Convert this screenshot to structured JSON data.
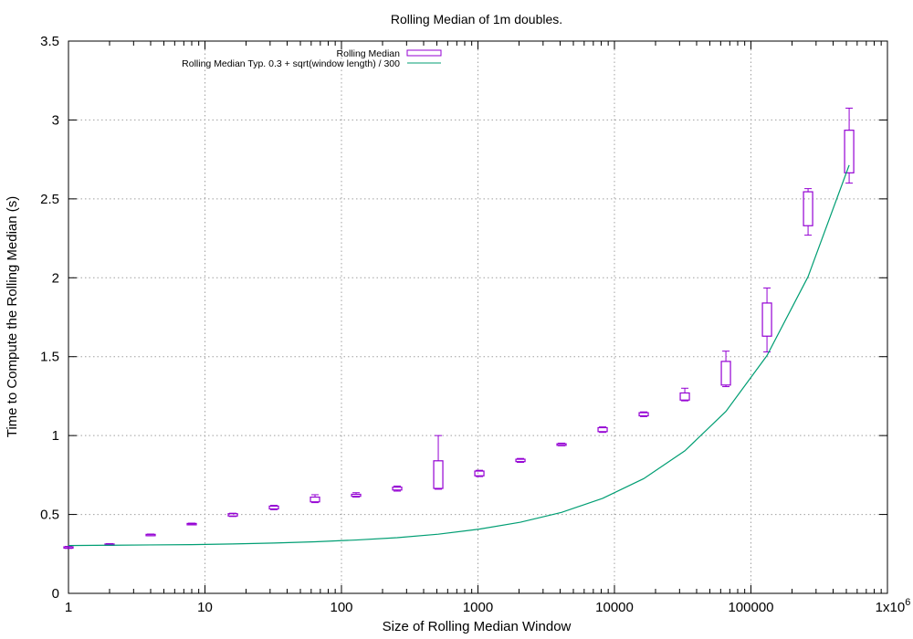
{
  "chart_data": {
    "type": "box",
    "title": "Rolling Median of 1m doubles.",
    "xlabel": "Size of Rolling Median Window",
    "ylabel": "Time to Compute the Rolling Median (s)",
    "x_scale": "log",
    "xlim": [
      1,
      1000000
    ],
    "ylim": [
      0,
      3.5
    ],
    "grid": true,
    "legend_position": "top-left",
    "x_ticks": [
      {
        "value": 1,
        "label": "1"
      },
      {
        "value": 10,
        "label": "10"
      },
      {
        "value": 100,
        "label": "100"
      },
      {
        "value": 1000,
        "label": "1000"
      },
      {
        "value": 10000,
        "label": "10000"
      },
      {
        "value": 100000,
        "label": "100000"
      },
      {
        "value": 1000000,
        "label": "1x10",
        "sup": "6"
      }
    ],
    "y_ticks": [
      {
        "value": 0,
        "label": "0"
      },
      {
        "value": 0.5,
        "label": "0.5"
      },
      {
        "value": 1,
        "label": "1"
      },
      {
        "value": 1.5,
        "label": "1.5"
      },
      {
        "value": 2,
        "label": "2"
      },
      {
        "value": 2.5,
        "label": "2.5"
      },
      {
        "value": 3,
        "label": "3"
      },
      {
        "value": 3.5,
        "label": "3.5"
      }
    ],
    "series": [
      {
        "name": "Rolling Median",
        "kind": "box",
        "color": "#9400d3",
        "points": [
          {
            "x": 1,
            "min": 0.285,
            "q1": 0.288,
            "q3": 0.295,
            "max": 0.298
          },
          {
            "x": 2,
            "min": 0.306,
            "q1": 0.308,
            "q3": 0.313,
            "max": 0.315
          },
          {
            "x": 4,
            "min": 0.365,
            "q1": 0.368,
            "q3": 0.374,
            "max": 0.376
          },
          {
            "x": 8,
            "min": 0.436,
            "q1": 0.438,
            "q3": 0.443,
            "max": 0.445
          },
          {
            "x": 16,
            "min": 0.487,
            "q1": 0.49,
            "q3": 0.505,
            "max": 0.508
          },
          {
            "x": 32,
            "min": 0.53,
            "q1": 0.535,
            "q3": 0.553,
            "max": 0.558
          },
          {
            "x": 64,
            "min": 0.575,
            "q1": 0.58,
            "q3": 0.61,
            "max": 0.625
          },
          {
            "x": 128,
            "min": 0.61,
            "q1": 0.615,
            "q3": 0.628,
            "max": 0.638
          },
          {
            "x": 256,
            "min": 0.648,
            "q1": 0.655,
            "q3": 0.673,
            "max": 0.68
          },
          {
            "x": 512,
            "min": 0.66,
            "q1": 0.665,
            "q3": 0.84,
            "max": 1.0
          },
          {
            "x": 1024,
            "min": 0.74,
            "q1": 0.745,
            "q3": 0.775,
            "max": 0.78
          },
          {
            "x": 2048,
            "min": 0.83,
            "q1": 0.835,
            "q3": 0.85,
            "max": 0.855
          },
          {
            "x": 4096,
            "min": 0.935,
            "q1": 0.938,
            "q3": 0.948,
            "max": 0.952
          },
          {
            "x": 8192,
            "min": 1.02,
            "q1": 1.025,
            "q3": 1.05,
            "max": 1.055
          },
          {
            "x": 16384,
            "min": 1.12,
            "q1": 1.125,
            "q3": 1.145,
            "max": 1.15
          },
          {
            "x": 32768,
            "min": 1.22,
            "q1": 1.225,
            "q3": 1.27,
            "max": 1.3
          },
          {
            "x": 65536,
            "min": 1.31,
            "q1": 1.32,
            "q3": 1.47,
            "max": 1.535
          },
          {
            "x": 131072,
            "min": 1.53,
            "q1": 1.63,
            "q3": 1.84,
            "max": 1.935
          },
          {
            "x": 262144,
            "min": 2.27,
            "q1": 2.33,
            "q3": 2.545,
            "max": 2.565
          },
          {
            "x": 524288,
            "min": 2.6,
            "q1": 2.665,
            "q3": 2.935,
            "max": 3.075
          }
        ]
      },
      {
        "name": "Rolling Median Typ. 0.3 + sqrt(window length) / 300",
        "kind": "line",
        "color": "#009e73",
        "x": [
          1,
          2,
          4,
          8,
          16,
          32,
          64,
          128,
          256,
          512,
          1024,
          2048,
          4096,
          8192,
          16384,
          32768,
          65536,
          131072,
          262144,
          524288
        ],
        "y": [
          0.303,
          0.305,
          0.307,
          0.309,
          0.313,
          0.319,
          0.327,
          0.338,
          0.353,
          0.375,
          0.407,
          0.451,
          0.513,
          0.602,
          0.727,
          0.903,
          1.153,
          1.507,
          2.007,
          2.714
        ]
      }
    ]
  }
}
